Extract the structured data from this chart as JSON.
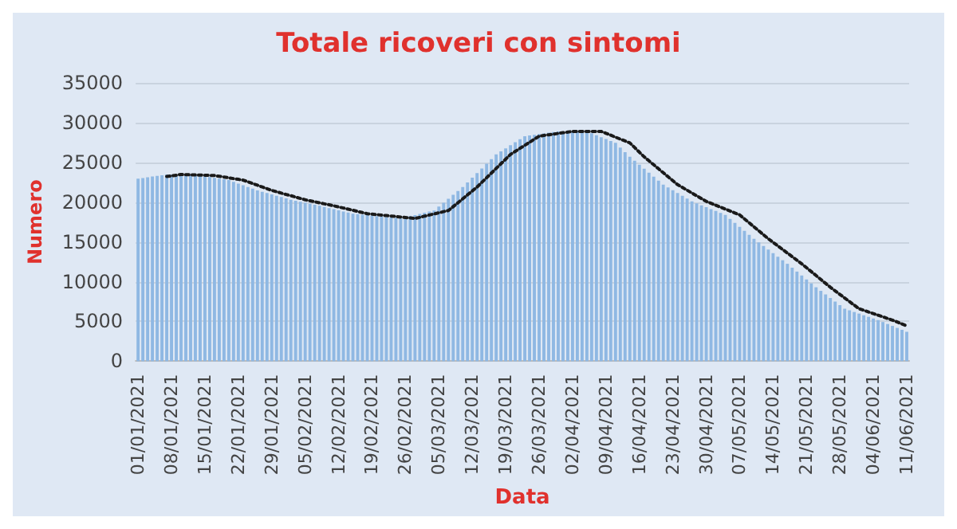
{
  "chart_data": {
    "type": "bar",
    "title": "Totale ricoveri con sintomi",
    "xlabel": "Data",
    "ylabel": "Numero",
    "categories": [
      "01/01/2021",
      null,
      null,
      null,
      null,
      null,
      null,
      "08/01/2021",
      null,
      null,
      null,
      null,
      null,
      null,
      "15/01/2021",
      null,
      null,
      null,
      null,
      null,
      null,
      "22/01/2021",
      null,
      null,
      null,
      null,
      null,
      null,
      "29/01/2021",
      null,
      null,
      null,
      null,
      null,
      null,
      "05/02/2021",
      null,
      null,
      null,
      null,
      null,
      null,
      "12/02/2021",
      null,
      null,
      null,
      null,
      null,
      null,
      "19/02/2021",
      null,
      null,
      null,
      null,
      null,
      null,
      "26/02/2021",
      null,
      null,
      null,
      null,
      null,
      null,
      "05/03/2021",
      null,
      null,
      null,
      null,
      null,
      null,
      "12/03/2021",
      null,
      null,
      null,
      null,
      null,
      null,
      "19/03/2021",
      null,
      null,
      null,
      null,
      null,
      null,
      "26/03/2021",
      null,
      null,
      null,
      null,
      null,
      null,
      "02/04/2021",
      null,
      null,
      null,
      null,
      null,
      null,
      "09/04/2021",
      null,
      null,
      null,
      null,
      null,
      null,
      "16/04/2021",
      null,
      null,
      null,
      null,
      null,
      null,
      "23/04/2021",
      null,
      null,
      null,
      null,
      null,
      null,
      "30/04/2021",
      null,
      null,
      null,
      null,
      null,
      null,
      "07/05/2021",
      null,
      null,
      null,
      null,
      null,
      null,
      "14/05/2021",
      null,
      null,
      null,
      null,
      null,
      null,
      "21/05/2021",
      null,
      null,
      null,
      null,
      null,
      null,
      "28/05/2021",
      null,
      null,
      null,
      null,
      null,
      null,
      "04/06/2021",
      null,
      null,
      null,
      null,
      null,
      null,
      "11/06/2021"
    ],
    "series": [
      {
        "color": "#8fb8e3",
        "values": [
          22950,
          23040,
          23130,
          23220,
          23300,
          23390,
          23480,
          23460,
          23440,
          23420,
          23400,
          23390,
          23370,
          23350,
          23250,
          23160,
          23060,
          22960,
          22870,
          22770,
          22560,
          22340,
          22130,
          21910,
          21700,
          21480,
          21310,
          21140,
          20970,
          20810,
          20640,
          20470,
          20300,
          20170,
          20050,
          19920,
          19790,
          19670,
          19540,
          19400,
          19260,
          19120,
          18980,
          18830,
          18690,
          18550,
          18490,
          18430,
          18370,
          18310,
          18250,
          18190,
          18130,
          18070,
          18010,
          17950,
          18090,
          18240,
          18380,
          18520,
          18660,
          18810,
          18950,
          19440,
          19930,
          20420,
          20920,
          21410,
          21900,
          22490,
          23070,
          23660,
          24240,
          24830,
          25410,
          26000,
          26380,
          26770,
          27150,
          27530,
          27920,
          28300,
          28390,
          28470,
          28560,
          28640,
          28730,
          28810,
          28900,
          28900,
          28900,
          28900,
          28900,
          28900,
          28900,
          28660,
          28420,
          28170,
          27930,
          27690,
          27450,
          26870,
          26280,
          25700,
          25200,
          24700,
          24200,
          23700,
          23200,
          22700,
          22200,
          21850,
          21500,
          21150,
          20800,
          20450,
          20100,
          19860,
          19610,
          19370,
          19130,
          18890,
          18640,
          18400,
          17900,
          17400,
          16900,
          16400,
          15900,
          15400,
          14950,
          14500,
          14050,
          13600,
          13150,
          12700,
          12250,
          11760,
          11270,
          10780,
          10280,
          9790,
          9300,
          8850,
          8400,
          7950,
          7500,
          7050,
          6600,
          6400,
          6190,
          5990,
          5780,
          5580,
          5370,
          5170,
          4930,
          4680,
          4440,
          4190,
          3950,
          3700
        ]
      },
      {
        "type": "line",
        "color": "#1a1a1a",
        "values": [
          null,
          null,
          null,
          null,
          null,
          null,
          23220,
          23300,
          23390,
          23480,
          23460,
          23440,
          23420,
          23400,
          23390,
          23370,
          23350,
          23250,
          23160,
          23060,
          22960,
          22870,
          22770,
          22560,
          22340,
          22130,
          21910,
          21700,
          21480,
          21310,
          21140,
          20970,
          20810,
          20640,
          20470,
          20300,
          20170,
          20050,
          19920,
          19790,
          19670,
          19540,
          19400,
          19260,
          19120,
          18980,
          18830,
          18690,
          18550,
          18490,
          18430,
          18370,
          18310,
          18250,
          18190,
          18130,
          18070,
          18010,
          17950,
          18090,
          18240,
          18380,
          18520,
          18660,
          18810,
          18950,
          19440,
          19930,
          20420,
          20920,
          21410,
          21900,
          22490,
          23070,
          23660,
          24240,
          24830,
          25410,
          26000,
          26380,
          26770,
          27150,
          27530,
          27920,
          28300,
          28390,
          28470,
          28560,
          28640,
          28730,
          28810,
          28900,
          28900,
          28900,
          28900,
          28900,
          28900,
          28900,
          28660,
          28420,
          28170,
          27930,
          27690,
          27450,
          26870,
          26280,
          25700,
          25200,
          24700,
          24200,
          23700,
          23200,
          22700,
          22200,
          21850,
          21500,
          21150,
          20800,
          20450,
          20100,
          19860,
          19610,
          19370,
          19130,
          18890,
          18640,
          18400,
          17900,
          17400,
          16900,
          16400,
          15900,
          15400,
          14950,
          14500,
          14050,
          13600,
          13150,
          12700,
          12250,
          11760,
          11270,
          10780,
          10280,
          9790,
          9300,
          8850,
          8400,
          7950,
          7500,
          7050,
          6600,
          6400,
          6190,
          5990,
          5780,
          5580,
          5370,
          5170,
          4930,
          4680,
          4440
        ]
      }
    ],
    "ylim": [
      0,
      35000
    ],
    "yticks": [
      0,
      5000,
      10000,
      15000,
      20000,
      25000,
      30000,
      35000
    ],
    "grid": "y",
    "line_style": "dotted",
    "marker": "none"
  }
}
